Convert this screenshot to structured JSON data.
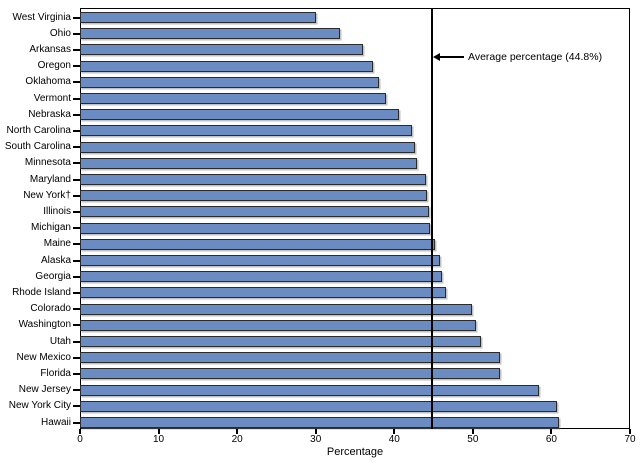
{
  "chart_data": {
    "type": "bar",
    "orientation": "horizontal",
    "title": "",
    "categories": [
      "West Virginia",
      "Ohio",
      "Arkansas",
      "Oregon",
      "Oklahoma",
      "Vermont",
      "Nebraska",
      "North Carolina",
      "South Carolina",
      "Minnesota",
      "Maryland",
      "New York†",
      "Illinois",
      "Michigan",
      "Maine",
      "Alaska",
      "Georgia",
      "Rhode Island",
      "Colorado",
      "Washington",
      "Utah",
      "New Mexico",
      "Florida",
      "New Jersey",
      "New York City",
      "Hawaii"
    ],
    "values": [
      30.0,
      33.1,
      36.0,
      37.3,
      38.0,
      39.0,
      40.6,
      42.3,
      42.6,
      42.9,
      44.0,
      44.2,
      44.4,
      44.6,
      45.2,
      45.8,
      46.1,
      46.6,
      49.9,
      50.4,
      51.0,
      53.4,
      53.5,
      58.4,
      60.7,
      60.9
    ],
    "xlabel": "Percentage",
    "ylabel": "",
    "xlim": [
      0,
      70
    ],
    "xticks": [
      0,
      10,
      20,
      30,
      40,
      50,
      60,
      70
    ],
    "average": {
      "value": 44.8,
      "label": "Average percentage (44.8%)"
    },
    "bar_color": "#6a8cc3",
    "bar_border_color": "#2b2b2b",
    "frame": true,
    "grid": false,
    "legend": "none"
  }
}
